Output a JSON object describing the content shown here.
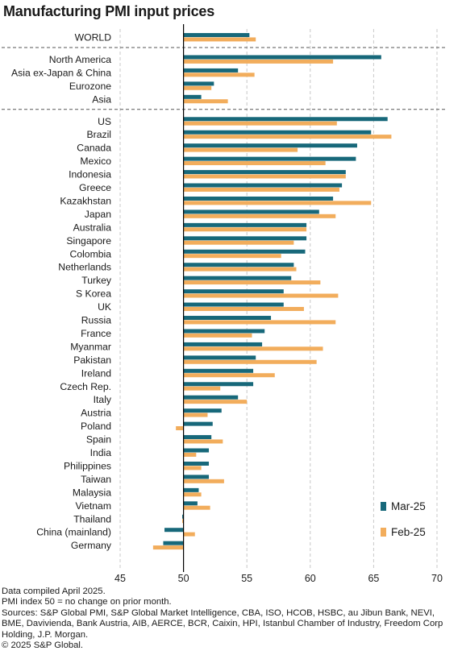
{
  "title": "Manufacturing PMI input prices",
  "colors": {
    "mar": "#17687a",
    "feb": "#f2ad5c",
    "grid": "#c8c8c8",
    "axis": "#000000"
  },
  "chart_data": {
    "type": "bar",
    "orientation": "horizontal",
    "title": "Manufacturing PMI input prices",
    "xlim": [
      45,
      70
    ],
    "xticks": [
      45,
      50,
      55,
      60,
      65,
      70
    ],
    "baseline": 50,
    "grid": true,
    "legend_position": "bottom-right",
    "series": [
      {
        "name": "Mar-25",
        "color": "#17687a"
      },
      {
        "name": "Feb-25",
        "color": "#f2ad5c"
      }
    ],
    "groups": [
      {
        "rows": [
          {
            "label": "WORLD",
            "mar": 55.2,
            "feb": 55.7
          }
        ]
      },
      {
        "rows": [
          {
            "label": "North America",
            "mar": 65.6,
            "feb": 61.8
          },
          {
            "label": "Asia ex-Japan & China",
            "mar": 54.3,
            "feb": 55.6
          },
          {
            "label": "Eurozone",
            "mar": 52.4,
            "feb": 52.2
          },
          {
            "label": "Asia",
            "mar": 51.4,
            "feb": 53.5
          }
        ]
      },
      {
        "rows": [
          {
            "label": "US",
            "mar": 66.1,
            "feb": 62.1
          },
          {
            "label": "Brazil",
            "mar": 64.8,
            "feb": 66.4
          },
          {
            "label": "Canada",
            "mar": 63.7,
            "feb": 59.0
          },
          {
            "label": "Mexico",
            "mar": 63.6,
            "feb": 61.2
          },
          {
            "label": "Indonesia",
            "mar": 62.8,
            "feb": 62.8
          },
          {
            "label": "Greece",
            "mar": 62.5,
            "feb": 62.3
          },
          {
            "label": "Kazakhstan",
            "mar": 61.8,
            "feb": 64.8
          },
          {
            "label": "Japan",
            "mar": 60.7,
            "feb": 62.0
          },
          {
            "label": "Australia",
            "mar": 59.7,
            "feb": 59.7
          },
          {
            "label": "Singapore",
            "mar": 59.7,
            "feb": 58.7
          },
          {
            "label": "Colombia",
            "mar": 59.6,
            "feb": 57.7
          },
          {
            "label": "Netherlands",
            "mar": 58.7,
            "feb": 58.9
          },
          {
            "label": "Turkey",
            "mar": 58.5,
            "feb": 60.8
          },
          {
            "label": "S Korea",
            "mar": 57.9,
            "feb": 62.2
          },
          {
            "label": "UK",
            "mar": 57.9,
            "feb": 59.5
          },
          {
            "label": "Russia",
            "mar": 56.9,
            "feb": 62.0
          },
          {
            "label": "France",
            "mar": 56.4,
            "feb": 55.4
          },
          {
            "label": "Myanmar",
            "mar": 56.2,
            "feb": 61.0
          },
          {
            "label": "Pakistan",
            "mar": 55.7,
            "feb": 60.5
          },
          {
            "label": "Ireland",
            "mar": 55.5,
            "feb": 57.2
          },
          {
            "label": "Czech Rep.",
            "mar": 55.5,
            "feb": 52.9
          },
          {
            "label": "Italy",
            "mar": 54.3,
            "feb": 55.0
          },
          {
            "label": "Austria",
            "mar": 53.0,
            "feb": 51.9
          },
          {
            "label": "Poland",
            "mar": 52.3,
            "feb": 49.4
          },
          {
            "label": "Spain",
            "mar": 52.2,
            "feb": 53.1
          },
          {
            "label": "India",
            "mar": 52.0,
            "feb": 51.0
          },
          {
            "label": "Philippines",
            "mar": 52.0,
            "feb": 51.4
          },
          {
            "label": "Taiwan",
            "mar": 52.0,
            "feb": 53.2
          },
          {
            "label": "Malaysia",
            "mar": 51.2,
            "feb": 51.4
          },
          {
            "label": "Vietnam",
            "mar": 51.1,
            "feb": 52.1
          },
          {
            "label": "Thailand",
            "mar": 49.9,
            "feb": 49.9
          },
          {
            "label": "China (mainland)",
            "mar": 48.5,
            "feb": 50.9
          },
          {
            "label": "Germany",
            "mar": 48.4,
            "feb": 47.6
          }
        ]
      }
    ]
  },
  "footnotes": [
    "Data compiled April 2025.",
    "PMI index 50 = no change on prior month.",
    "Sources: S&P Global PMI, S&P Global Market Intelligence, CBA, ISO, HCOB, HSBC, au Jibun Bank, NEVI, BME, Davivienda, Bank Austria, AIB, AERCE, BCR, Caixin, HPI, Istanbul Chamber of Industry, Freedom Corp Holding, J.P. Morgan.",
    "© 2025 S&P Global."
  ]
}
